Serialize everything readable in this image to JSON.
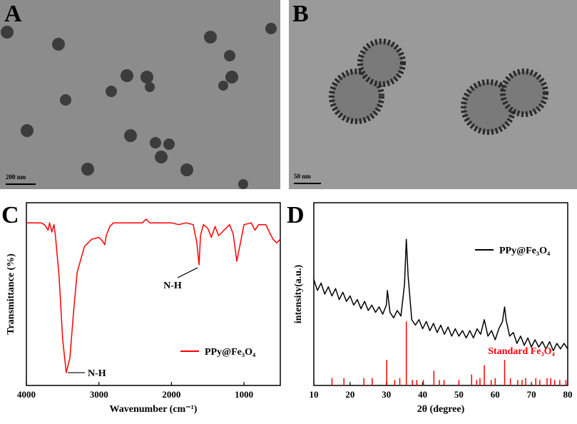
{
  "panels": [
    {
      "label": "A",
      "scale_bar": "200 nm"
    },
    {
      "label": "B",
      "scale_bar": "50 nm"
    }
  ],
  "chart_data": [
    {
      "label": "C",
      "type": "line",
      "x_label": "Wavenumber (cm⁻¹)",
      "y_label": "Transmittance (%)",
      "x": [
        4000,
        3800,
        3750,
        3700,
        3680,
        3650,
        3620,
        3600,
        3550,
        3500,
        3450,
        3400,
        3350,
        3300,
        3200,
        3100,
        3000,
        2950,
        2920,
        2900,
        2850,
        2800,
        2400,
        2350,
        2300,
        2000,
        1900,
        1800,
        1700,
        1650,
        1620,
        1600,
        1560,
        1500,
        1450,
        1400,
        1350,
        1300,
        1200,
        1150,
        1100,
        1050,
        1000,
        900,
        850,
        800,
        700,
        650,
        600,
        550,
        500
      ],
      "series": [
        {
          "name": "PPy@Fe₃O₄",
          "color": "#ff0000",
          "values": [
            89,
            89,
            88,
            85,
            89,
            84,
            88,
            82,
            60,
            25,
            7,
            15,
            40,
            62,
            76,
            80,
            81,
            79,
            77,
            82,
            87,
            89,
            89,
            91,
            89,
            89,
            88,
            89,
            88,
            78,
            66,
            82,
            88,
            86,
            81,
            87,
            82,
            84,
            88,
            83,
            68,
            78,
            88,
            89,
            85,
            88,
            88,
            84,
            80,
            78,
            80
          ]
        }
      ],
      "xlim": [
        4000,
        500
      ],
      "xticks": [
        4000,
        3000,
        2000,
        1000
      ],
      "ylim": [
        0,
        100
      ],
      "legend": "lower right",
      "annotations": [
        {
          "text": "N-H",
          "x": 3450,
          "y": 7
        },
        {
          "text": "N-H",
          "x": 1620,
          "y": 66
        }
      ]
    },
    {
      "label": "D",
      "type": "line",
      "x_label": "2θ (degree)",
      "y_label": "intensity(a.u.)",
      "x": [
        10,
        11,
        12,
        13,
        14,
        15,
        16,
        17,
        18,
        19,
        20,
        21,
        22,
        23,
        24,
        25,
        26,
        27,
        28,
        29,
        30,
        30.3,
        31,
        32,
        33,
        34,
        35,
        35.5,
        36,
        37,
        38,
        39,
        40,
        41,
        42,
        43,
        44,
        45,
        46,
        47,
        48,
        49,
        50,
        51,
        52,
        53,
        54,
        55,
        56,
        57,
        58,
        59,
        60,
        61,
        62,
        62.6,
        63,
        64,
        65,
        66,
        67,
        68,
        69,
        70,
        71,
        72,
        73,
        74,
        75,
        76,
        77,
        78,
        79,
        80
      ],
      "series": [
        {
          "name": "PPy@Fe₃O₄",
          "color": "#000000",
          "values": [
            58,
            52,
            56,
            50,
            54,
            49,
            53,
            47,
            51,
            46,
            49,
            44,
            47,
            42,
            46,
            41,
            44,
            40,
            43,
            39,
            44,
            52,
            40,
            37,
            41,
            38,
            55,
            80,
            60,
            36,
            33,
            36,
            31,
            35,
            30,
            34,
            29,
            33,
            28,
            32,
            27,
            31,
            27,
            30,
            26,
            30,
            26,
            31,
            28,
            36,
            27,
            30,
            25,
            31,
            35,
            43,
            36,
            27,
            29,
            23,
            27,
            22,
            26,
            21,
            25,
            21,
            24,
            20,
            24,
            19,
            23,
            20,
            23,
            20
          ]
        },
        {
          "name": "Standard Fe₃O₄",
          "color": "#ff0000",
          "type": "bar",
          "x": [
            15,
            18.3,
            23.8,
            26.1,
            30.1,
            32.3,
            33.7,
            35.5,
            37.2,
            38.4,
            40.2,
            43.1,
            44.6,
            45.9,
            50,
            53.5,
            54.9,
            55.8,
            57,
            58.9,
            60,
            62.6,
            64.2,
            66.2,
            67.4,
            68.4,
            71.2,
            72.3,
            74.3,
            75.3,
            76.4,
            77.8,
            79.5
          ],
          "values": [
            4,
            4,
            4,
            4,
            14,
            3,
            4,
            35,
            3,
            3,
            3,
            8,
            3,
            3,
            3,
            6,
            3,
            4,
            11,
            3,
            4,
            14,
            4,
            3,
            3,
            4,
            4,
            3,
            4,
            4,
            3,
            3,
            3
          ]
        }
      ],
      "xlim": [
        10,
        80
      ],
      "xticks": [
        10,
        20,
        30,
        40,
        50,
        60,
        70,
        80
      ],
      "ylim": [
        0,
        100
      ],
      "legend": "upper right"
    }
  ]
}
